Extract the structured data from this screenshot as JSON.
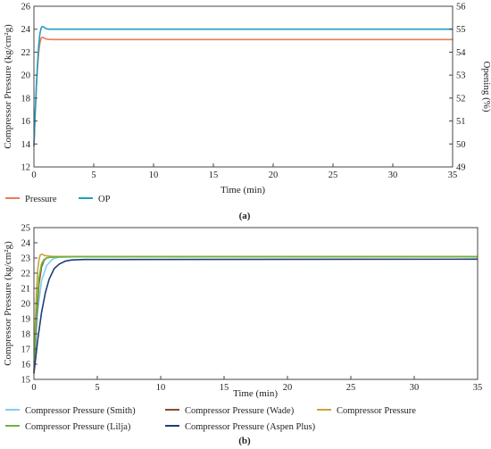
{
  "chart_data": [
    {
      "type": "line",
      "panel_label": "(a)",
      "xlabel": "Time (min)",
      "ylabel": "Compressor Pressure (kg/cm²g)",
      "y2label": "Opening (%)",
      "xlim": [
        0,
        35
      ],
      "ylim": [
        12,
        26
      ],
      "y2lim": [
        49,
        56
      ],
      "xticks": [
        0,
        5,
        10,
        15,
        20,
        25,
        30,
        35
      ],
      "yticks": [
        12,
        14,
        16,
        18,
        20,
        22,
        24,
        26
      ],
      "y2ticks": [
        49,
        50,
        51,
        52,
        53,
        54,
        55,
        56
      ],
      "grid": false,
      "legend_position": "bottom-left",
      "series": [
        {
          "name": "Pressure",
          "axis": "left",
          "color": "#ee7955",
          "x": [
            0,
            0.1,
            0.2,
            0.3,
            0.4,
            0.5,
            0.6,
            0.7,
            0.8,
            1.0,
            1.2,
            1.5,
            2,
            3,
            35
          ],
          "y": [
            13.8,
            16.5,
            18.8,
            20.7,
            22.0,
            22.8,
            23.2,
            23.3,
            23.25,
            23.15,
            23.12,
            23.1,
            23.1,
            23.1,
            23.1
          ]
        },
        {
          "name": "OP",
          "axis": "right",
          "color": "#1f9fc4",
          "x": [
            0,
            0.1,
            0.2,
            0.3,
            0.4,
            0.5,
            0.6,
            0.7,
            0.8,
            0.9,
            1.0,
            1.2,
            1.5,
            2,
            3,
            35
          ],
          "y": [
            49.9,
            51.3,
            52.5,
            53.5,
            54.3,
            54.8,
            55.05,
            55.12,
            55.1,
            55.06,
            55.03,
            55.0,
            55.0,
            55.0,
            55.0,
            55.0
          ]
        }
      ]
    },
    {
      "type": "line",
      "panel_label": "(b)",
      "xlabel": "Time (min)",
      "ylabel": "Compressor Pressure (kg/cm²g)",
      "xlim": [
        0,
        35
      ],
      "ylim": [
        15,
        25
      ],
      "xticks": [
        0,
        5,
        10,
        15,
        20,
        25,
        30,
        35
      ],
      "yticks": [
        15,
        16,
        17,
        18,
        19,
        20,
        21,
        22,
        23,
        24,
        25
      ],
      "grid": false,
      "legend_position": "bottom",
      "series": [
        {
          "name": "Compressor Pressure (Smith)",
          "color": "#7fcfee",
          "x": [
            0,
            0.3,
            0.6,
            1.0,
            1.5,
            2,
            3,
            4,
            35
          ],
          "y": [
            15.5,
            19.5,
            21.5,
            22.5,
            22.95,
            23.05,
            23.08,
            23.1,
            23.1
          ]
        },
        {
          "name": "Compressor Pressure (Wade)",
          "color": "#8a4a2a",
          "x": [
            0,
            0.2,
            0.4,
            0.6,
            0.8,
            1.0,
            1.3,
            1.6,
            2,
            3,
            35
          ],
          "y": [
            15.4,
            19.0,
            21.3,
            22.4,
            22.85,
            23.0,
            23.05,
            23.07,
            23.08,
            23.08,
            23.08
          ]
        },
        {
          "name": "Compressor Pressure",
          "color": "#c9a43b",
          "x": [
            0,
            0.1,
            0.2,
            0.3,
            0.4,
            0.5,
            0.6,
            0.7,
            0.9,
            1.2,
            1.5,
            2,
            35
          ],
          "y": [
            15.4,
            18.5,
            20.8,
            22.2,
            22.9,
            23.2,
            23.25,
            23.22,
            23.15,
            23.12,
            23.1,
            23.1,
            23.1
          ]
        },
        {
          "name": "Compressor Pressure (Lilja)",
          "color": "#6db33f",
          "x": [
            0,
            0.2,
            0.4,
            0.6,
            0.8,
            1.0,
            1.3,
            1.6,
            2,
            3,
            35
          ],
          "y": [
            15.4,
            19.5,
            21.7,
            22.6,
            22.9,
            23.0,
            23.05,
            23.06,
            23.07,
            23.08,
            23.08
          ]
        },
        {
          "name": "Compressor Pressure (Aspen Plus)",
          "color": "#1f3d7a",
          "x": [
            0,
            0.3,
            0.6,
            0.9,
            1.2,
            1.6,
            2,
            2.5,
            3,
            4,
            5,
            35
          ],
          "y": [
            15.4,
            17.6,
            19.4,
            20.7,
            21.6,
            22.3,
            22.6,
            22.8,
            22.87,
            22.9,
            22.9,
            22.92
          ]
        }
      ]
    }
  ]
}
